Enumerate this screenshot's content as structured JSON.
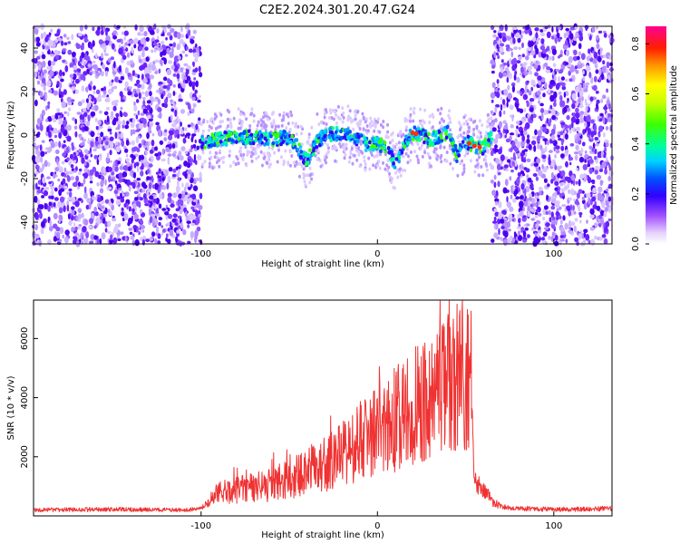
{
  "title": "C2E2.2024.301.20.47.G24",
  "colorbar": {
    "label": "Normalized spectral amplitude",
    "ticks": [
      "0.0",
      "0.2",
      "0.4",
      "0.6",
      "0.8"
    ],
    "tick_values": [
      0.0,
      0.2,
      0.4,
      0.6,
      0.8
    ],
    "range": [
      0,
      0.87
    ]
  },
  "chart_data": [
    {
      "type": "heatmap",
      "xlabel": "Height of straight line (km)",
      "ylabel": "Frequency (Hz)",
      "xlim": [
        -195,
        133
      ],
      "ylim": [
        -50,
        50
      ],
      "x_ticks": [
        "-100",
        "0",
        "100"
      ],
      "x_tick_values": [
        -100,
        0,
        100
      ],
      "y_ticks": [
        "40",
        "20",
        "0",
        "-20",
        "-40"
      ],
      "y_tick_values": [
        40,
        20,
        0,
        -20,
        -40
      ],
      "trace": {
        "x": [
          -100,
          -90,
          -80,
          -70,
          -60,
          -50,
          -45,
          -40,
          -35,
          -30,
          -20,
          -15,
          -10,
          -5,
          0,
          5,
          10,
          15,
          20,
          25,
          30,
          40,
          45,
          50,
          55,
          60,
          65
        ],
        "y": [
          -3,
          -2,
          -1,
          -1,
          -2,
          -1,
          -6,
          -12,
          -4,
          0,
          1,
          0,
          -2,
          -5,
          -4,
          -6,
          -13,
          -5,
          1,
          0,
          -2,
          1,
          -9,
          -3,
          -5,
          -6,
          0
        ]
      },
      "noise_regions_x": [
        [
          -195,
          -100
        ],
        [
          65,
          133
        ]
      ]
    },
    {
      "type": "line",
      "xlabel": "Height of straight line (km)",
      "ylabel": "SNR (10 * v/v)",
      "xlim": [
        -195,
        133
      ],
      "ylim": [
        0,
        7300
      ],
      "x_ticks": [
        "-100",
        "0",
        "100"
      ],
      "x_tick_values": [
        -100,
        0,
        100
      ],
      "y_ticks": [
        "2000",
        "4000",
        "6000"
      ],
      "y_tick_values": [
        2000,
        4000,
        6000
      ],
      "color": "#f03232",
      "series": [
        {
          "x": [
            -195,
            -150,
            -110,
            -100,
            -95,
            -90,
            -80,
            -70,
            -60,
            -50,
            -40,
            -30,
            -20,
            -10,
            0,
            10,
            20,
            30,
            40,
            45,
            50,
            54,
            55,
            58,
            62,
            65,
            70,
            80,
            100,
            120,
            133
          ],
          "y": [
            200,
            220,
            200,
            230,
            500,
            750,
            850,
            950,
            1050,
            1250,
            1500,
            1750,
            2050,
            2500,
            2900,
            3250,
            3650,
            4050,
            4450,
            4700,
            4950,
            5100,
            1100,
            1000,
            750,
            500,
            300,
            250,
            220,
            230,
            250
          ]
        }
      ]
    }
  ]
}
